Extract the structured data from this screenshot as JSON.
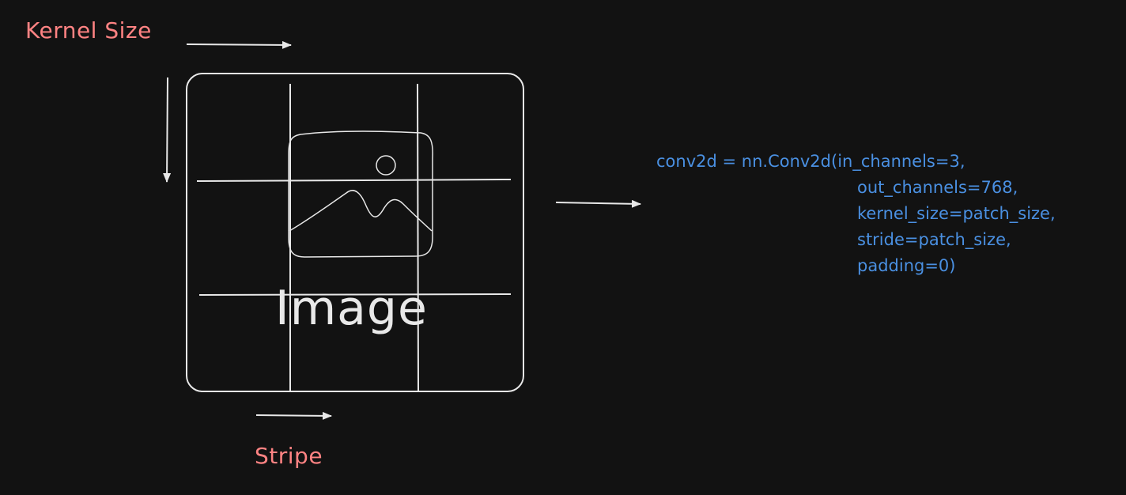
{
  "labels": {
    "kernel_size": "Kernel Size",
    "stripe": "Stripe",
    "image": "Image"
  },
  "code": {
    "line1": "conv2d = nn.Conv2d(in_channels=3,",
    "line2": "out_channels=768,",
    "line3": "kernel_size=patch_size,",
    "line4": "stride=patch_size,",
    "line5": "padding=0)"
  },
  "colors": {
    "background": "#121212",
    "stroke": "#e8e8e8",
    "accent_label": "#ff8383",
    "code": "#4a90e2"
  },
  "icons": {
    "image_placeholder": "image-icon"
  }
}
